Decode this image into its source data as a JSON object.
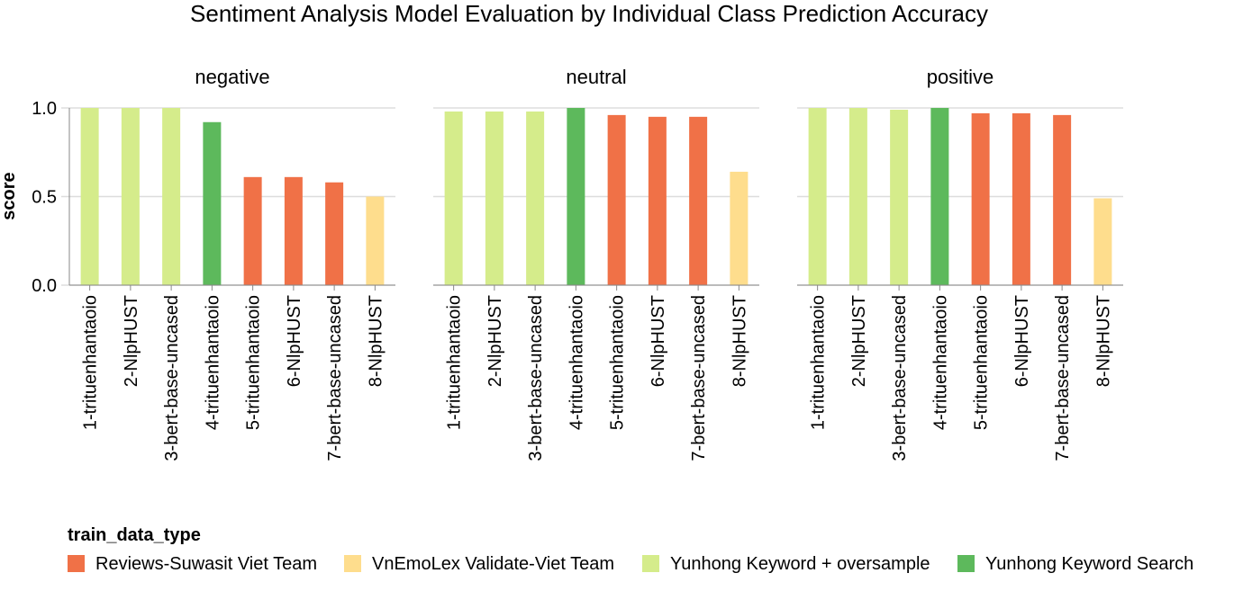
{
  "chart_data": {
    "type": "bar",
    "title": "Sentiment Analysis Model Evaluation by Individual Class Prediction Accuracy",
    "ylabel": "score",
    "xlabel": "",
    "ylim": [
      0,
      1
    ],
    "y_ticks": [
      "0.0",
      "0.5",
      "1.0"
    ],
    "grid": true,
    "legend_placement": "bottom",
    "legend_title": "train_data_type",
    "categories": [
      "1-trituenhantaoio",
      "2-NlpHUST",
      "3-bert-base-uncased",
      "4-trituenhantaoio",
      "5-trituenhantaoio",
      "6-NlpHUST",
      "7-bert-base-uncased",
      "8-NlpHUST"
    ],
    "category_types": [
      "Yunhong Keyword + oversample",
      "Yunhong Keyword + oversample",
      "Yunhong Keyword + oversample",
      "Yunhong Keyword Search",
      "Reviews-Suwasit Viet Team",
      "Reviews-Suwasit Viet Team",
      "Reviews-Suwasit Viet Team",
      "VnEmoLex Validate-Viet Team"
    ],
    "legend": [
      {
        "label": "Reviews-Suwasit Viet Team",
        "color": "#f07147"
      },
      {
        "label": "VnEmoLex Validate-Viet Team",
        "color": "#fedd8d"
      },
      {
        "label": "Yunhong Keyword + oversample",
        "color": "#d5ec8b"
      },
      {
        "label": "Yunhong Keyword Search",
        "color": "#5db95c"
      }
    ],
    "facets": [
      {
        "name": "negative",
        "values": [
          1.0,
          1.0,
          1.0,
          0.92,
          0.61,
          0.61,
          0.58,
          0.5
        ]
      },
      {
        "name": "neutral",
        "values": [
          0.98,
          0.98,
          0.98,
          1.0,
          0.96,
          0.95,
          0.95,
          0.64
        ]
      },
      {
        "name": "positive",
        "values": [
          1.0,
          1.0,
          0.99,
          1.0,
          0.97,
          0.97,
          0.96,
          0.49
        ]
      }
    ]
  }
}
